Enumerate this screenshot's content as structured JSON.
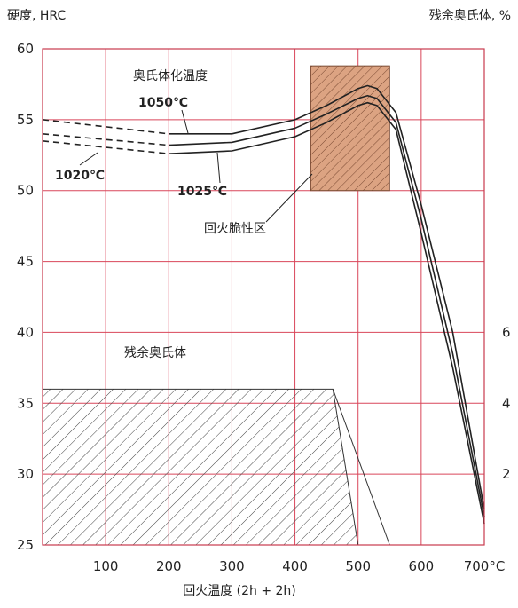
{
  "chart_data": {
    "type": "line",
    "y_axis_label": "硬度, HRC",
    "y2_axis_label": "残余奥氏体, %",
    "x_axis_label": "回火温度 (2h + 2h)",
    "xlim": [
      0,
      700
    ],
    "ylim": [
      25,
      60
    ],
    "y2lim": [
      0,
      8
    ],
    "x_ticks": [
      {
        "value": 100,
        "label": "100"
      },
      {
        "value": 200,
        "label": "200"
      },
      {
        "value": 300,
        "label": "300"
      },
      {
        "value": 400,
        "label": "400"
      },
      {
        "value": 500,
        "label": "500"
      },
      {
        "value": 600,
        "label": "600"
      },
      {
        "value": 700,
        "label": "700°C"
      }
    ],
    "y_ticks": [
      25,
      30,
      35,
      40,
      45,
      50,
      55,
      60
    ],
    "y2_ticks": [
      2,
      4,
      6
    ],
    "grid": true,
    "series": [
      {
        "name": "1050℃",
        "x": [
          0,
          200,
          300,
          400,
          450,
          500,
          515,
          530,
          560,
          600,
          650,
          700
        ],
        "y": [
          55,
          54,
          54,
          55,
          56,
          57.2,
          57.4,
          57.2,
          55.5,
          49,
          40,
          27.5
        ]
      },
      {
        "name": "1025℃",
        "x": [
          0,
          200,
          300,
          400,
          450,
          500,
          515,
          530,
          560,
          600,
          650,
          700
        ],
        "y": [
          54,
          53.2,
          53.4,
          54.4,
          55.4,
          56.5,
          56.7,
          56.5,
          54.8,
          48,
          38.5,
          27
        ]
      },
      {
        "name": "1020℃",
        "x": [
          0,
          200,
          300,
          400,
          450,
          500,
          515,
          530,
          560,
          600,
          650,
          700
        ],
        "y": [
          53.5,
          52.6,
          52.8,
          53.8,
          54.8,
          56,
          56.2,
          56,
          54.3,
          47,
          37.5,
          26.5
        ]
      }
    ],
    "retained_austenite_region": {
      "label": "残余奥氏体",
      "x": [
        0,
        460,
        500,
        0
      ],
      "y_percent": [
        4.4,
        4.4,
        0,
        0
      ]
    },
    "temper_brittleness_region": {
      "label": "回火脆性区",
      "x_range": [
        425,
        550
      ],
      "y_range": [
        50,
        58.8
      ]
    },
    "annotations": {
      "title_label": "奥氏体化温度",
      "label_1050": "1050℃",
      "label_1025": "1025℃",
      "label_1020": "1020℃"
    }
  }
}
